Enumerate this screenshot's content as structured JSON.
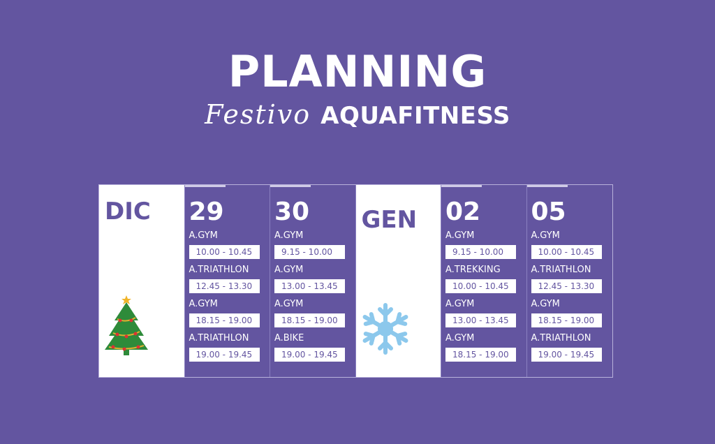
{
  "header": {
    "title": "PLANNING",
    "subtitle_script": "Festivo",
    "subtitle_bold": "AQUAFITNESS"
  },
  "colors": {
    "background": "#6355a0",
    "tree": "#2e8b3a",
    "snowflake": "#8cc8ec"
  },
  "columns": [
    {
      "type": "month",
      "label": "DIC",
      "icon": "christmas-tree-icon"
    },
    {
      "type": "day",
      "label": "29",
      "entries": [
        {
          "activity": "A.GYM",
          "time": "10.00 - 10.45"
        },
        {
          "activity": "A.TRIATHLON",
          "time": "12.45 - 13.30"
        },
        {
          "activity": "A.GYM",
          "time": "18.15 - 19.00"
        },
        {
          "activity": "A.TRIATHLON",
          "time": "19.00 - 19.45"
        }
      ]
    },
    {
      "type": "day",
      "label": "30",
      "entries": [
        {
          "activity": "A.GYM",
          "time": "9.15 - 10.00"
        },
        {
          "activity": "A.GYM",
          "time": "13.00 - 13.45"
        },
        {
          "activity": "A.GYM",
          "time": "18.15 - 19.00"
        },
        {
          "activity": "A.BIKE",
          "time": "19.00 - 19.45"
        }
      ]
    },
    {
      "type": "month",
      "label": "GEN",
      "icon": "snowflake-icon"
    },
    {
      "type": "day",
      "label": "02",
      "entries": [
        {
          "activity": "A.GYM",
          "time": "9.15 - 10.00"
        },
        {
          "activity": "A.TREKKING",
          "time": "10.00 - 10.45"
        },
        {
          "activity": "A.GYM",
          "time": "13.00 - 13.45"
        },
        {
          "activity": "A.GYM",
          "time": "18.15 - 19.00"
        }
      ]
    },
    {
      "type": "day",
      "label": "05",
      "entries": [
        {
          "activity": "A.GYM",
          "time": "10.00 - 10.45"
        },
        {
          "activity": "A.TRIATHLON",
          "time": "12.45 - 13.30"
        },
        {
          "activity": "A.GYM",
          "time": "18.15 - 19.00"
        },
        {
          "activity": "A.TRIATHLON",
          "time": "19.00 - 19.45"
        }
      ]
    }
  ]
}
